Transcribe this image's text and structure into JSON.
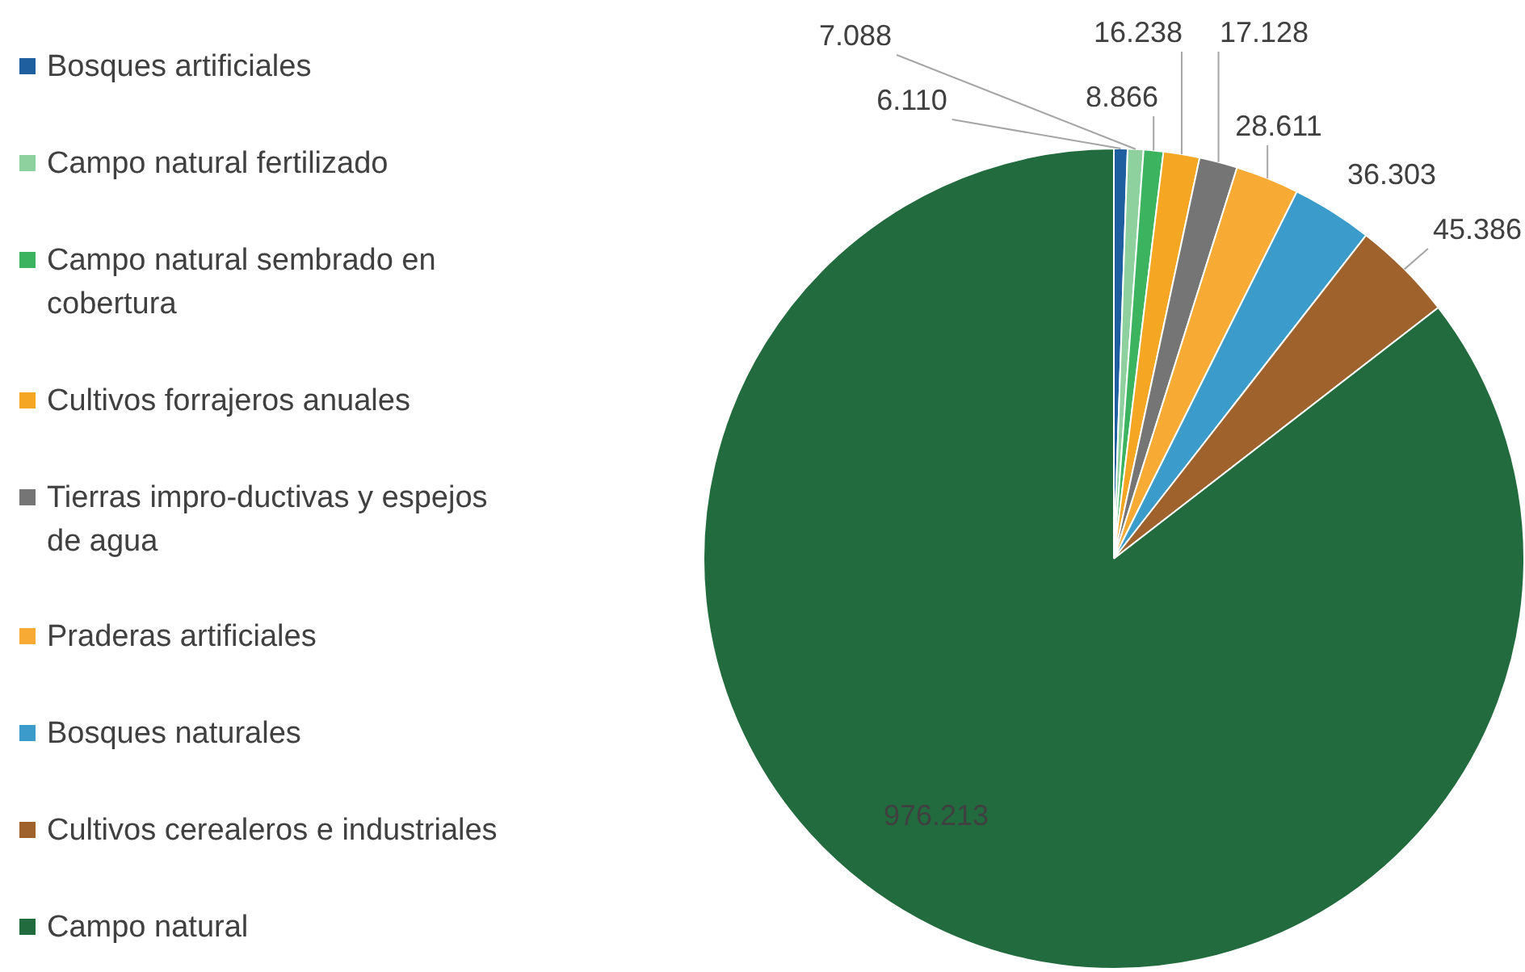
{
  "chart_data": {
    "type": "pie",
    "categories": [
      "Bosques artificiales",
      "Campo natural fertilizado",
      "Campo natural sembrado en cobertura",
      "Cultivos forrajeros anuales",
      "Tierras impro-ductivas y espejos de agua",
      "Praderas artificiales",
      "Bosques naturales",
      "Cultivos cerealeros e industriales",
      "Campo natural"
    ],
    "values": [
      6110,
      7088,
      8866,
      16238,
      17128,
      28611,
      36303,
      45386,
      976213
    ],
    "value_labels": [
      "6.110",
      "7.088",
      "8.866",
      "16.238",
      "17.128",
      "28.611",
      "36.303",
      "45.386",
      "976.213"
    ],
    "colors": [
      "#1f5fa0",
      "#8fd19e",
      "#3cb35f",
      "#f5a623",
      "#757575",
      "#f7ab35",
      "#3b9ccc",
      "#a0622d",
      "#226b3e"
    ],
    "legend": "left"
  }
}
